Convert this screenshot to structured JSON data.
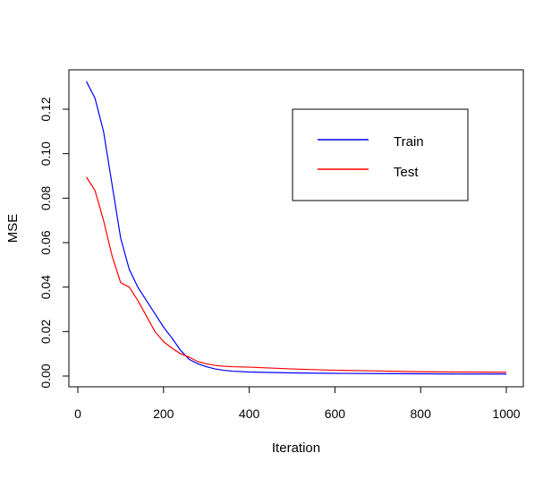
{
  "chart_data": {
    "type": "line",
    "title": "",
    "xlabel": "Iteration",
    "ylabel": "MSE",
    "xlim": [
      0,
      1000
    ],
    "ylim": [
      0,
      0.13
    ],
    "x_ticks": [
      0,
      200,
      400,
      600,
      800,
      1000
    ],
    "y_ticks": [
      0.0,
      0.02,
      0.04,
      0.06,
      0.08,
      0.1,
      0.12
    ],
    "y_tick_labels": [
      "0.00",
      "0.02",
      "0.04",
      "0.06",
      "0.08",
      "0.10",
      "0.12"
    ],
    "grid": false,
    "legend_position": "top-right",
    "x": [
      20,
      40,
      60,
      80,
      100,
      120,
      140,
      160,
      180,
      200,
      220,
      240,
      260,
      280,
      300,
      320,
      340,
      360,
      400,
      500,
      600,
      700,
      800,
      900,
      1000
    ],
    "series": [
      {
        "name": "Train",
        "color": "#0000ff",
        "values": [
          0.1325,
          0.125,
          0.11,
          0.086,
          0.062,
          0.048,
          0.04,
          0.034,
          0.028,
          0.022,
          0.017,
          0.0115,
          0.0075,
          0.0055,
          0.0042,
          0.0032,
          0.0026,
          0.0022,
          0.0018,
          0.0014,
          0.0012,
          0.0011,
          0.001,
          0.0009,
          0.0009
        ]
      },
      {
        "name": "Test",
        "color": "#ff0000",
        "values": [
          0.0895,
          0.0835,
          0.07,
          0.054,
          0.042,
          0.04,
          0.034,
          0.027,
          0.02,
          0.0155,
          0.0125,
          0.01,
          0.0085,
          0.0065,
          0.0055,
          0.0048,
          0.0044,
          0.0042,
          0.004,
          0.0032,
          0.0026,
          0.0023,
          0.0019,
          0.0018,
          0.0017
        ]
      }
    ]
  }
}
